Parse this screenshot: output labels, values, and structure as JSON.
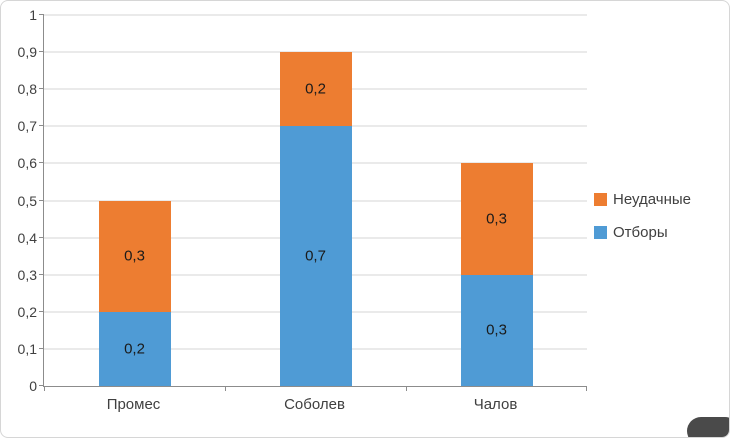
{
  "chart_data": {
    "type": "bar",
    "stacked": true,
    "title": "",
    "xlabel": "",
    "ylabel": "",
    "categories": [
      "Промес",
      "Соболев",
      "Чалов"
    ],
    "series": [
      {
        "name": "Отборы",
        "color": "#4f9bd5",
        "values": [
          0.2,
          0.7,
          0.3
        ]
      },
      {
        "name": "Неудачные",
        "color": "#ed7d31",
        "values": [
          0.3,
          0.2,
          0.3
        ]
      }
    ],
    "totals": [
      0.5,
      0.9,
      0.6
    ],
    "ylim": [
      0,
      1
    ],
    "ytick_step": 0.1,
    "ytick_labels": [
      "0",
      "0,1",
      "0,2",
      "0,3",
      "0,4",
      "0,5",
      "0,6",
      "0,7",
      "0,8",
      "0,9",
      "1"
    ],
    "decimal_separator": ",",
    "grid": true,
    "legend_position": "right",
    "legend_order": [
      "Неудачные",
      "Отборы"
    ],
    "data_labels_shown": true,
    "colors": {
      "gridline": "#d6d6d6",
      "axis": "#8c8c8c",
      "text": "#404040"
    }
  }
}
